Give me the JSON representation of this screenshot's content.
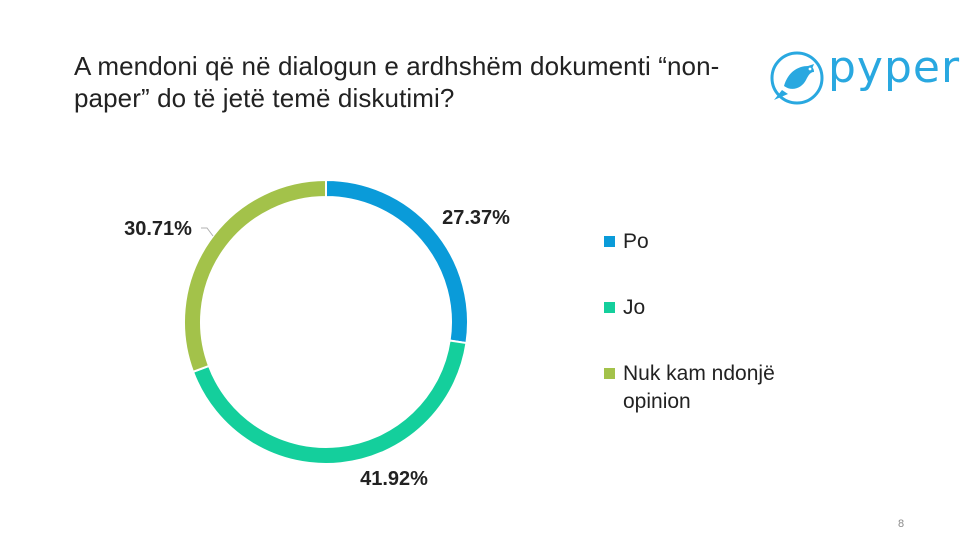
{
  "slide": {
    "title": "A mendoni që në dialogun e ardhshëm dokumenti “non-paper” do të jetë temë diskutimi?",
    "page_number": "8"
  },
  "logo": {
    "text": "pyper",
    "icon": "bird-icon",
    "color": "#29a8e0"
  },
  "chart_data": {
    "type": "pie",
    "variant": "donut",
    "categories": [
      "Po",
      "Jo",
      "Nuk kam ndonjë opinion"
    ],
    "values": [
      27.37,
      41.92,
      30.71
    ],
    "data_labels": [
      "27.37%",
      "41.92%",
      "30.71%"
    ],
    "colors": [
      "#0a9bd9",
      "#14cf9c",
      "#a3c24a"
    ],
    "legend_placement": "right",
    "start_angle": "12 o'clock",
    "direction": "clockwise"
  }
}
